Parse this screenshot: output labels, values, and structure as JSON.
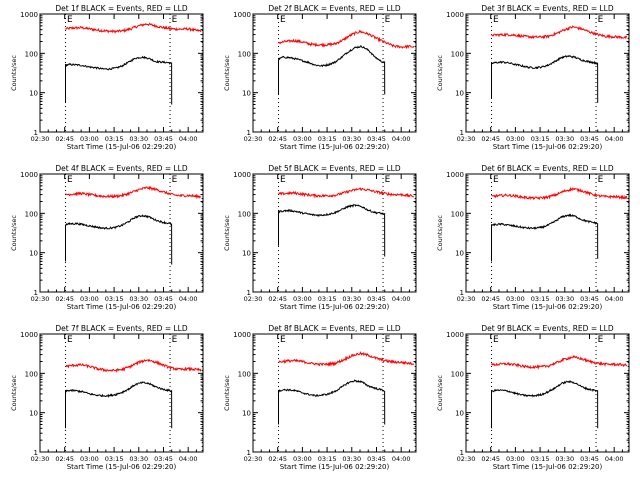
{
  "chart_data": {
    "type": "line",
    "layout": "3x3 grid of detector light curves",
    "log_y": true,
    "ylim": [
      1,
      1000
    ],
    "y_ticks": [
      "1",
      "10",
      "100",
      "1000"
    ],
    "ylabel": "Counts/sec",
    "x_ticks": [
      "02:30",
      "02:45",
      "03:00",
      "03:15",
      "03:30",
      "03:45",
      "04:00"
    ],
    "x_ticks_compact": [
      "02:30",
      "02:45",
      "03:00",
      "03:15",
      "03:30",
      "03:45",
      "04:00"
    ],
    "x_ticks_minutes": [
      150,
      165,
      180,
      195,
      210,
      225,
      240
    ],
    "xlim_minutes": [
      150,
      249
    ],
    "xlabel": "Start Time (15-Jul-06 02:29:20)",
    "series_colors": {
      "events": "#000000",
      "lld": "#ff0000"
    },
    "markers": [
      {
        "label": "E",
        "x_minutes": 165.5
      },
      {
        "label": "E",
        "x_minutes": 229
      },
      {
        "label": "",
        "x_minutes": 248.5
      }
    ],
    "panels": [
      {
        "title": "Det 1f  BLACK = Events, RED = LLD",
        "events": {
          "x": [
            165.5,
            168,
            172,
            176,
            180,
            184,
            188,
            192,
            196,
            200,
            204,
            208,
            212,
            216,
            220,
            224,
            228,
            230
          ],
          "y": [
            50,
            52,
            51,
            49,
            45,
            43,
            40,
            40,
            42,
            48,
            60,
            75,
            80,
            75,
            62,
            60,
            58,
            55
          ],
          "start": 5.5,
          "end": 5
        },
        "lld": {
          "x": [
            165.5,
            170,
            175,
            180,
            185,
            190,
            195,
            200,
            205,
            210,
            215,
            220,
            225,
            230,
            235,
            240,
            245,
            248
          ],
          "y": [
            420,
            440,
            450,
            420,
            390,
            370,
            360,
            370,
            420,
            500,
            560,
            500,
            450,
            420,
            410,
            420,
            380,
            370
          ]
        }
      },
      {
        "title": "Det 2f  BLACK = Events, RED = LLD",
        "events": {
          "x": [
            165.5,
            168,
            172,
            176,
            180,
            184,
            188,
            192,
            196,
            200,
            204,
            208,
            212,
            216,
            220,
            224,
            228,
            230
          ],
          "y": [
            70,
            80,
            78,
            72,
            65,
            58,
            50,
            48,
            52,
            60,
            80,
            110,
            140,
            150,
            120,
            80,
            62,
            58
          ],
          "start": 9,
          "end": 9
        },
        "lld": {
          "x": [
            165.5,
            170,
            175,
            180,
            185,
            190,
            195,
            200,
            205,
            210,
            215,
            220,
            225,
            230,
            235,
            240,
            245,
            248
          ],
          "y": [
            185,
            200,
            210,
            195,
            170,
            165,
            165,
            175,
            220,
            300,
            360,
            310,
            240,
            190,
            155,
            145,
            150,
            145
          ]
        }
      },
      {
        "title": "Det 3f  BLACK = Events, RED = LLD",
        "events": {
          "x": [
            165.5,
            168,
            172,
            176,
            180,
            184,
            188,
            192,
            196,
            200,
            204,
            208,
            212,
            216,
            220,
            224,
            228,
            230
          ],
          "y": [
            55,
            58,
            60,
            57,
            52,
            48,
            44,
            43,
            45,
            50,
            62,
            78,
            85,
            80,
            68,
            62,
            58,
            55
          ],
          "start": 7,
          "end": 5.5
        },
        "lld": {
          "x": [
            165.5,
            170,
            175,
            180,
            185,
            190,
            195,
            200,
            205,
            210,
            215,
            220,
            225,
            230,
            235,
            240,
            245,
            248
          ],
          "y": [
            290,
            295,
            300,
            290,
            270,
            260,
            260,
            270,
            320,
            400,
            470,
            420,
            350,
            300,
            270,
            265,
            255,
            250
          ]
        }
      },
      {
        "title": "Det 4f  BLACK = Events, RED = LLD",
        "events": {
          "x": [
            165.5,
            168,
            172,
            176,
            180,
            184,
            188,
            192,
            196,
            200,
            204,
            208,
            212,
            216,
            220,
            224,
            228,
            230
          ],
          "y": [
            52,
            54,
            55,
            52,
            48,
            45,
            42,
            42,
            44,
            50,
            62,
            80,
            88,
            82,
            68,
            60,
            56,
            52
          ],
          "start": 6,
          "end": 5
        },
        "lld": {
          "x": [
            165.5,
            170,
            175,
            180,
            185,
            190,
            195,
            200,
            205,
            210,
            215,
            220,
            225,
            230,
            235,
            240,
            245,
            248
          ],
          "y": [
            300,
            310,
            320,
            300,
            280,
            270,
            270,
            285,
            330,
            400,
            450,
            410,
            350,
            300,
            280,
            285,
            270,
            265
          ]
        }
      },
      {
        "title": "Det 5f  BLACK = Events, RED = LLD",
        "events": {
          "x": [
            165.5,
            168,
            172,
            176,
            180,
            184,
            188,
            192,
            196,
            200,
            204,
            208,
            212,
            216,
            220,
            224,
            228,
            230
          ],
          "y": [
            110,
            115,
            118,
            112,
            102,
            95,
            90,
            90,
            95,
            105,
            125,
            150,
            160,
            148,
            120,
            105,
            100,
            95
          ],
          "start": 15,
          "end": 8
        },
        "lld": {
          "x": [
            165.5,
            170,
            175,
            180,
            185,
            190,
            195,
            200,
            205,
            210,
            215,
            220,
            225,
            230,
            235,
            240,
            245,
            248
          ],
          "y": [
            310,
            320,
            330,
            310,
            290,
            280,
            280,
            290,
            330,
            380,
            420,
            390,
            350,
            320,
            300,
            300,
            280,
            270
          ]
        }
      },
      {
        "title": "Det 6f  BLACK = Events, RED = LLD",
        "events": {
          "x": [
            165.5,
            168,
            172,
            176,
            180,
            184,
            188,
            192,
            196,
            200,
            204,
            208,
            212,
            216,
            220,
            224,
            228,
            230
          ],
          "y": [
            50,
            52,
            53,
            50,
            47,
            44,
            42,
            42,
            44,
            50,
            62,
            80,
            90,
            85,
            70,
            62,
            58,
            55
          ],
          "start": 6,
          "end": 7
        },
        "lld": {
          "x": [
            165.5,
            170,
            175,
            180,
            185,
            190,
            195,
            200,
            205,
            210,
            215,
            220,
            225,
            230,
            235,
            240,
            245,
            248
          ],
          "y": [
            270,
            280,
            290,
            275,
            255,
            245,
            245,
            260,
            300,
            370,
            420,
            380,
            320,
            280,
            265,
            265,
            255,
            250
          ]
        }
      },
      {
        "title": "Det 7f  BLACK = Events, RED = LLD",
        "events": {
          "x": [
            165.5,
            168,
            172,
            176,
            180,
            184,
            188,
            192,
            196,
            200,
            204,
            208,
            212,
            216,
            220,
            224,
            228,
            230
          ],
          "y": [
            35,
            37,
            36,
            34,
            30,
            28,
            27,
            27,
            29,
            33,
            40,
            52,
            58,
            55,
            46,
            40,
            37,
            35
          ],
          "start": 4,
          "end": 4
        },
        "lld": {
          "x": [
            165.5,
            170,
            175,
            180,
            185,
            190,
            195,
            200,
            205,
            210,
            215,
            220,
            225,
            230,
            235,
            240,
            245,
            248
          ],
          "y": [
            150,
            160,
            165,
            150,
            130,
            120,
            118,
            125,
            150,
            190,
            220,
            195,
            160,
            135,
            125,
            130,
            125,
            120
          ]
        }
      },
      {
        "title": "Det 8f  BLACK = Events, RED = LLD",
        "events": {
          "x": [
            165.5,
            168,
            172,
            176,
            180,
            184,
            188,
            192,
            196,
            200,
            204,
            208,
            212,
            216,
            220,
            224,
            228,
            230
          ],
          "y": [
            35,
            38,
            38,
            36,
            32,
            29,
            27,
            28,
            30,
            35,
            45,
            58,
            65,
            60,
            48,
            42,
            38,
            36
          ],
          "start": 5,
          "end": 5
        },
        "lld": {
          "x": [
            165.5,
            170,
            175,
            180,
            185,
            190,
            195,
            200,
            205,
            210,
            215,
            220,
            225,
            230,
            235,
            240,
            245,
            248
          ],
          "y": [
            195,
            205,
            210,
            200,
            180,
            170,
            170,
            180,
            220,
            280,
            320,
            290,
            240,
            210,
            195,
            190,
            180,
            175
          ]
        }
      },
      {
        "title": "Det 9f  BLACK = Events, RED = LLD",
        "events": {
          "x": [
            165.5,
            168,
            172,
            176,
            180,
            184,
            188,
            192,
            196,
            200,
            204,
            208,
            212,
            216,
            220,
            224,
            228,
            230
          ],
          "y": [
            35,
            37,
            37,
            35,
            31,
            28,
            27,
            27,
            29,
            34,
            42,
            55,
            62,
            58,
            46,
            40,
            37,
            35
          ],
          "start": 4,
          "end": 4
        },
        "lld": {
          "x": [
            165.5,
            170,
            175,
            180,
            185,
            190,
            195,
            200,
            205,
            210,
            215,
            220,
            225,
            230,
            235,
            240,
            245,
            248
          ],
          "y": [
            165,
            170,
            175,
            165,
            150,
            145,
            145,
            155,
            185,
            230,
            260,
            235,
            200,
            180,
            170,
            170,
            165,
            160
          ]
        }
      }
    ]
  }
}
